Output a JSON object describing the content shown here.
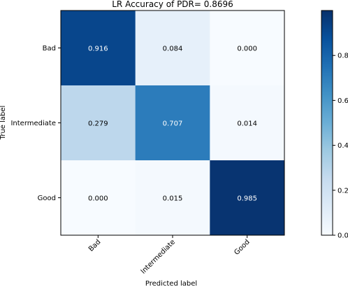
{
  "chart_data": {
    "type": "heatmap",
    "title": "LR Accuracy of PDR= 0.8696",
    "xlabel": "Predicted label",
    "ylabel": "True label",
    "x_categories": [
      "Bad",
      "Intermediate",
      "Good"
    ],
    "y_categories": [
      "Bad",
      "Intermediate",
      "Good"
    ],
    "values": [
      [
        0.916,
        0.084,
        0.0
      ],
      [
        0.279,
        0.707,
        0.014
      ],
      [
        0.0,
        0.015,
        0.985
      ]
    ],
    "value_labels": [
      [
        "0.916",
        "0.084",
        "0.000"
      ],
      [
        "0.279",
        "0.707",
        "0.014"
      ],
      [
        "0.000",
        "0.015",
        "0.985"
      ]
    ],
    "colormap": "Blues",
    "colorbar": {
      "range": [
        0,
        1
      ],
      "ticks": [
        0.0,
        0.2,
        0.4,
        0.6,
        0.8
      ],
      "tick_labels": [
        "0.0",
        "0.2",
        "0.4",
        "0.6",
        "0.8"
      ]
    },
    "x_tick_rotation_deg": 45,
    "grid": false
  }
}
